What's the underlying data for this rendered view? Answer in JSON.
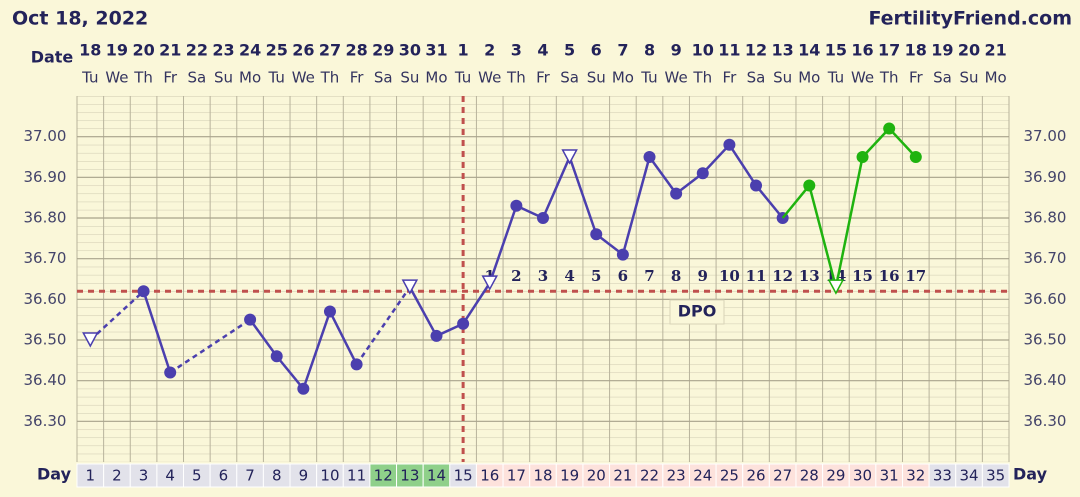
{
  "header": {
    "date": "Oct 18, 2022",
    "site": "FertilityFriend.com"
  },
  "chart_data": {
    "type": "line",
    "date_label": "Date",
    "day_label": "Day",
    "dpo_label": "DPO",
    "dates": [
      18,
      19,
      20,
      21,
      22,
      23,
      24,
      25,
      26,
      27,
      28,
      29,
      30,
      31,
      1,
      2,
      3,
      4,
      5,
      6,
      7,
      8,
      9,
      10,
      11,
      12,
      13,
      14,
      15,
      16,
      17,
      18,
      19,
      20,
      21
    ],
    "weekdays": [
      "Tu",
      "We",
      "Th",
      "Fr",
      "Sa",
      "Su",
      "Mo",
      "Tu",
      "We",
      "Th",
      "Fr",
      "Sa",
      "Su",
      "Mo",
      "Tu",
      "We",
      "Th",
      "Fr",
      "Sa",
      "Su",
      "Mo",
      "Tu",
      "We",
      "Th",
      "Fr",
      "Sa",
      "Su",
      "Mo",
      "Tu",
      "We",
      "Th",
      "Fr",
      "Sa",
      "Su",
      "Mo"
    ],
    "categories": [
      1,
      2,
      3,
      4,
      5,
      6,
      7,
      8,
      9,
      10,
      11,
      12,
      13,
      14,
      15,
      16,
      17,
      18,
      19,
      20,
      21,
      22,
      23,
      24,
      25,
      26,
      27,
      28,
      29,
      30,
      31,
      32,
      33,
      34,
      35
    ],
    "day_colors": [
      "#e2e2ea",
      "#e2e2ea",
      "#e2e2ea",
      "#e2e2ea",
      "#e2e2ea",
      "#e2e2ea",
      "#e2e2ea",
      "#e2e2ea",
      "#e2e2ea",
      "#e2e2ea",
      "#e2e2ea",
      "#8fd08a",
      "#8fd08a",
      "#8fd08a",
      "#e2e2ea",
      "#fde2dc",
      "#fde2dc",
      "#fde2dc",
      "#fde2dc",
      "#fde2dc",
      "#fde2dc",
      "#fde2dc",
      "#fde2dc",
      "#fde2dc",
      "#fde2dc",
      "#fde2dc",
      "#fde2dc",
      "#fde2dc",
      "#fde2dc",
      "#fde2dc",
      "#fde2dc",
      "#fde2dc",
      "#e2e2ea",
      "#e2e2ea",
      "#e2e2ea"
    ],
    "series": [
      {
        "color": "#4b3fae",
        "values": [
          36.5,
          null,
          36.62,
          36.42,
          null,
          null,
          36.55,
          36.46,
          36.38,
          36.57,
          36.44,
          null,
          36.63,
          36.51,
          36.54,
          36.64,
          36.83,
          36.8,
          36.95,
          36.76,
          36.71,
          36.95,
          36.86,
          36.91,
          36.98,
          36.88,
          36.8,
          null,
          null,
          null,
          null,
          null,
          null,
          null,
          null
        ],
        "markers": [
          "triangle",
          null,
          "circle",
          "circle",
          null,
          null,
          "circle",
          "circle",
          "circle",
          "circle",
          "circle",
          null,
          "triangle",
          "circle",
          "circle",
          "triangle",
          "circle",
          "circle",
          "triangle",
          "circle",
          "circle",
          "circle",
          "circle",
          "circle",
          "circle",
          "circle",
          "circle",
          null,
          null,
          null,
          null,
          null,
          null,
          null,
          null
        ]
      },
      {
        "color": "#1fb30f",
        "values": [
          null,
          null,
          null,
          null,
          null,
          null,
          null,
          null,
          null,
          null,
          null,
          null,
          null,
          null,
          null,
          null,
          null,
          null,
          null,
          null,
          null,
          null,
          null,
          null,
          null,
          null,
          null,
          36.88,
          36.63,
          36.95,
          37.02,
          36.95,
          null,
          null,
          null
        ],
        "markers": [
          null,
          null,
          null,
          null,
          null,
          null,
          null,
          null,
          null,
          null,
          null,
          null,
          null,
          null,
          null,
          null,
          null,
          null,
          null,
          null,
          null,
          null,
          null,
          null,
          null,
          null,
          null,
          "circle",
          "triangle",
          "circle",
          "circle",
          "circle",
          null,
          null,
          null
        ]
      }
    ],
    "coverline": 36.62,
    "ovulation_day": 15,
    "dpo": [
      null,
      null,
      null,
      null,
      null,
      null,
      null,
      null,
      null,
      null,
      null,
      null,
      null,
      null,
      null,
      1,
      2,
      3,
      4,
      5,
      6,
      7,
      8,
      9,
      10,
      11,
      12,
      13,
      14,
      15,
      16,
      17,
      null,
      null,
      null
    ],
    "ylim": [
      36.2,
      37.1
    ],
    "yticks": [
      {
        "value": 36.3,
        "label": "36.30"
      },
      {
        "value": 36.4,
        "label": "36.40"
      },
      {
        "value": 36.5,
        "label": "36.50"
      },
      {
        "value": 36.6,
        "label": "36.60"
      },
      {
        "value": 36.7,
        "label": "36.70"
      },
      {
        "value": 36.8,
        "label": "36.80"
      },
      {
        "value": 36.9,
        "label": "36.90"
      },
      {
        "value": 37,
        "label": "37.00"
      }
    ]
  }
}
